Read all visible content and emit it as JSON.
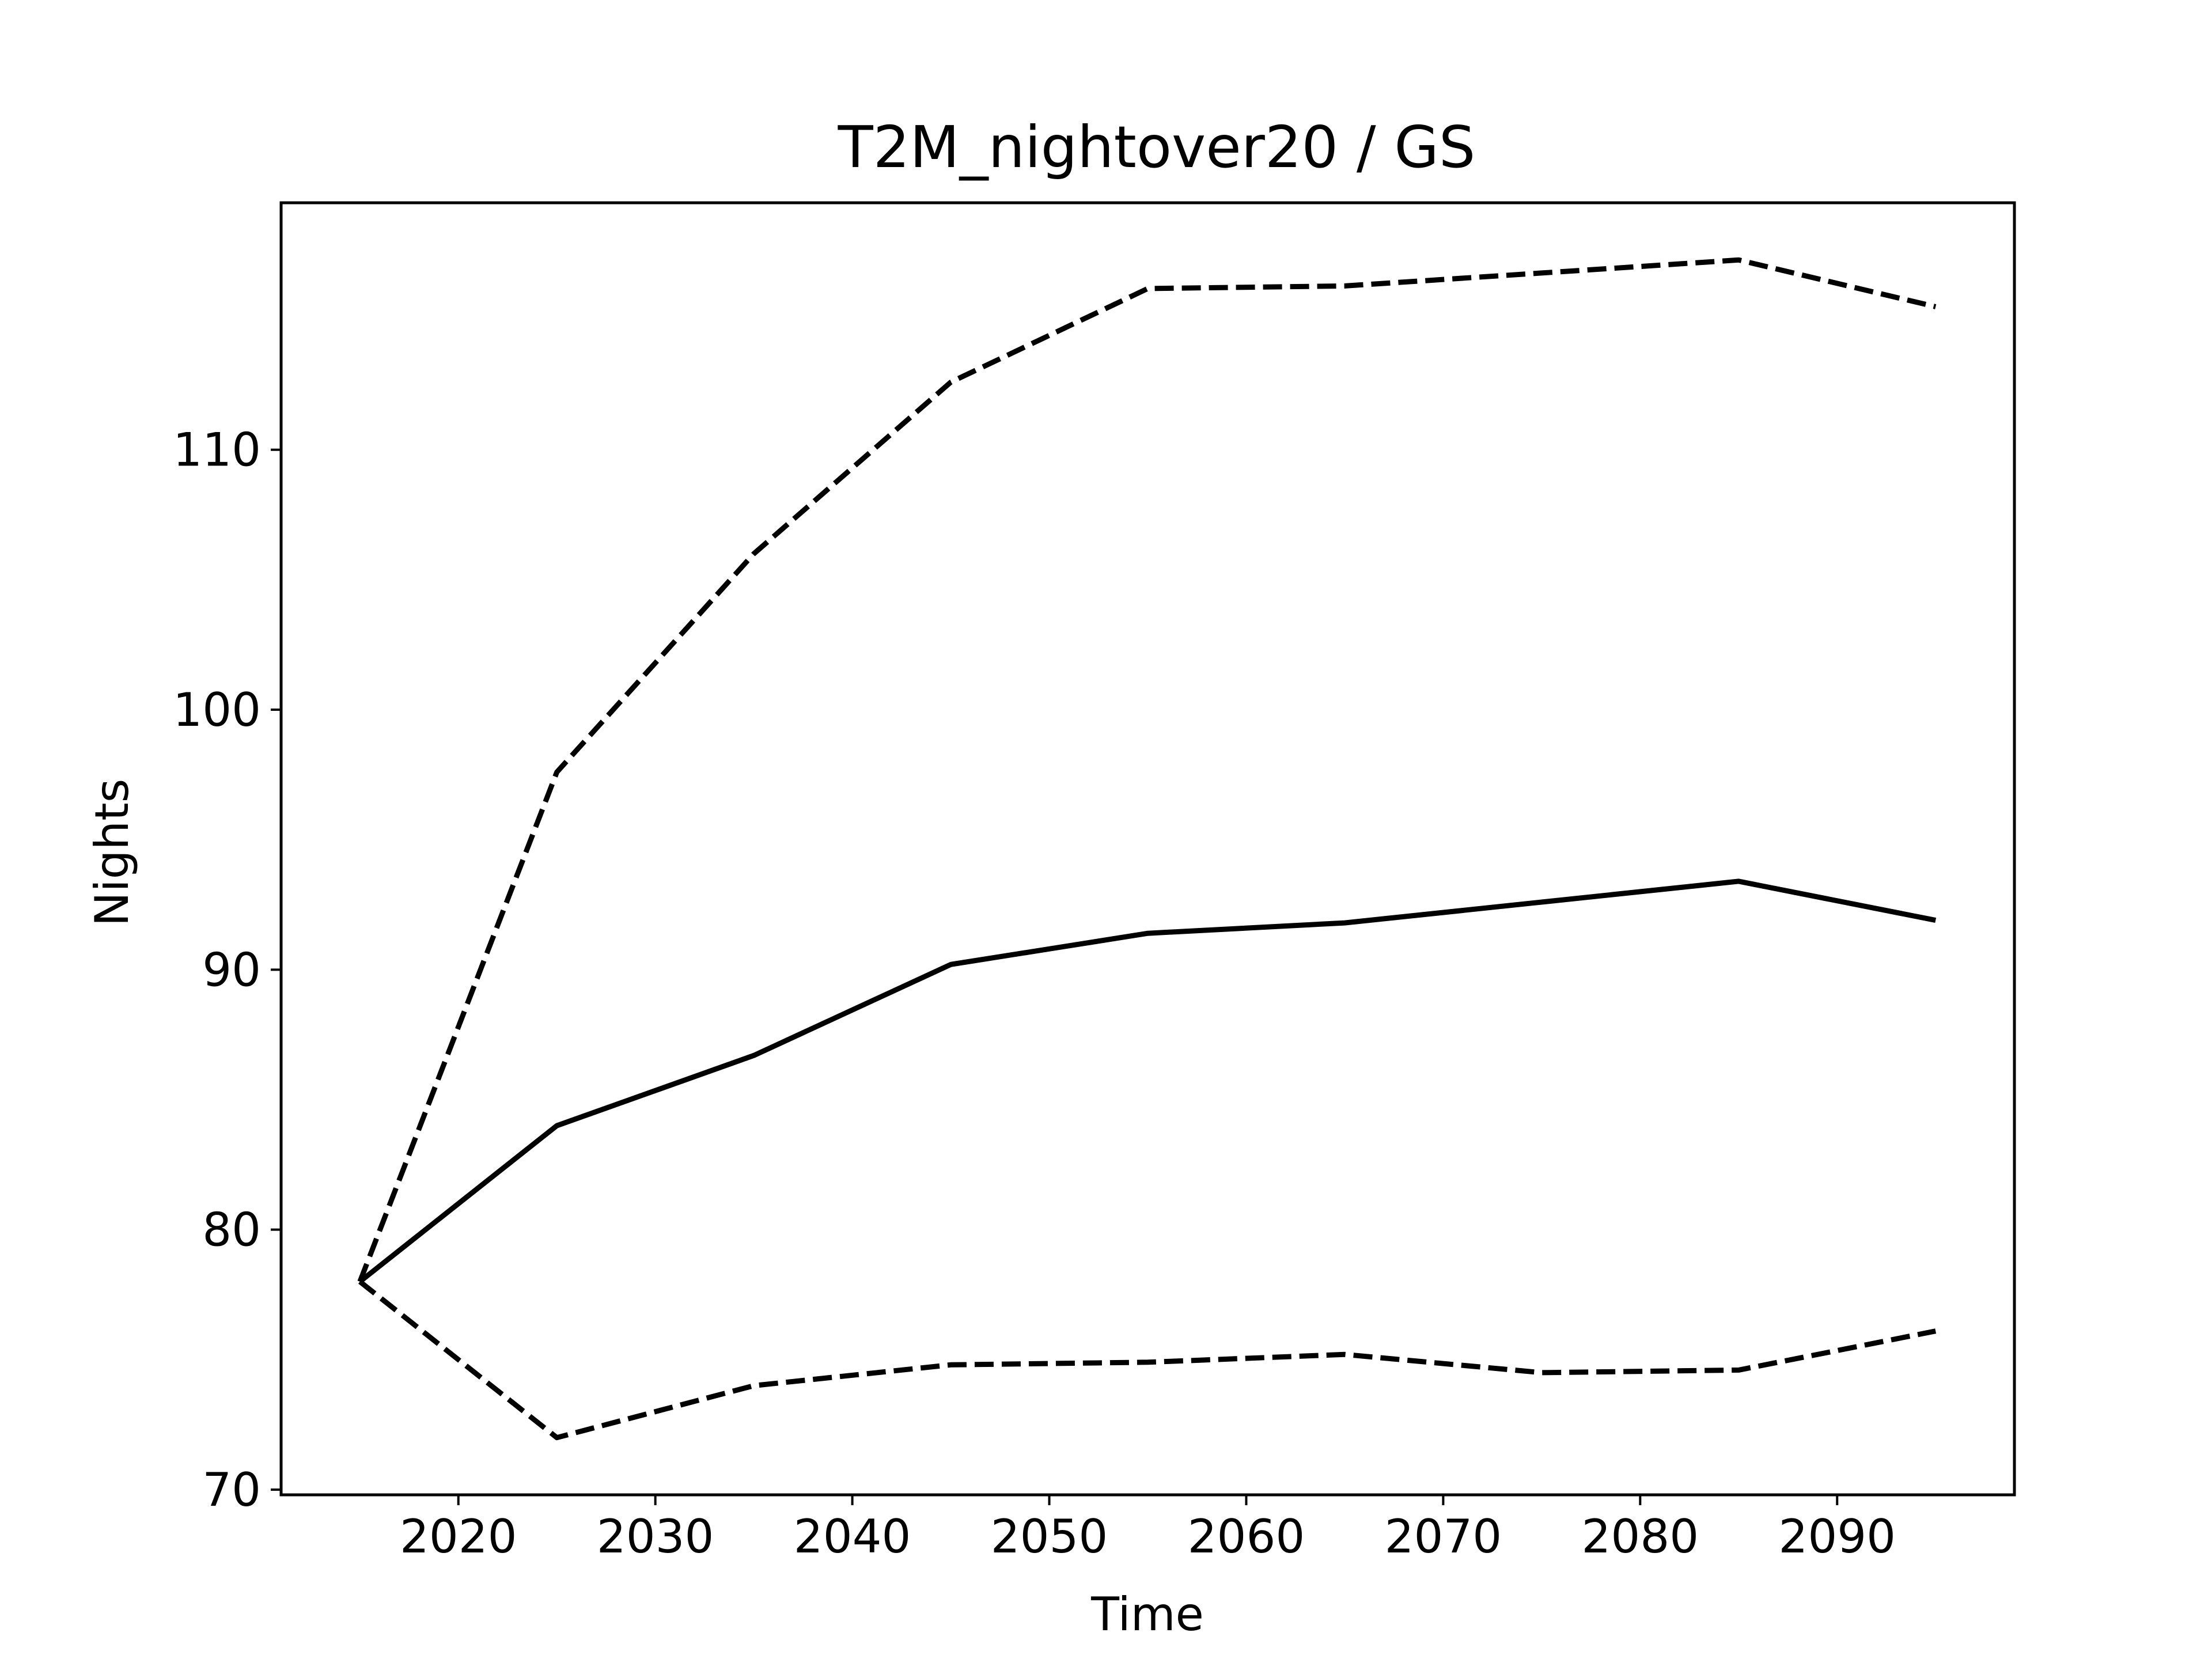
{
  "chart_data": {
    "type": "line",
    "title": "T2M_nightover20 / GS",
    "xlabel": "Time",
    "ylabel": "Nights",
    "xlim": [
      2011,
      2099
    ],
    "ylim": [
      69.8,
      119.5
    ],
    "grid": false,
    "legend": "none",
    "x_ticks": [
      2020,
      2030,
      2040,
      2050,
      2060,
      2070,
      2080,
      2090
    ],
    "y_ticks": [
      70,
      80,
      90,
      100,
      110
    ],
    "x": [
      2015,
      2025,
      2035,
      2045,
      2055,
      2065,
      2075,
      2085,
      2095
    ],
    "series": [
      {
        "style": "dashed",
        "color": "#000000",
        "values": [
          78.0,
          97.6,
          106.0,
          112.6,
          116.2,
          116.3,
          116.8,
          117.3,
          115.5
        ]
      },
      {
        "style": "solid",
        "color": "#000000",
        "values": [
          78.0,
          84.0,
          86.7,
          90.2,
          91.4,
          91.8,
          92.6,
          93.4,
          91.9
        ]
      },
      {
        "style": "dashed",
        "color": "#000000",
        "values": [
          78.0,
          72.0,
          74.0,
          74.8,
          74.9,
          75.2,
          74.5,
          74.6,
          76.1
        ]
      }
    ]
  }
}
